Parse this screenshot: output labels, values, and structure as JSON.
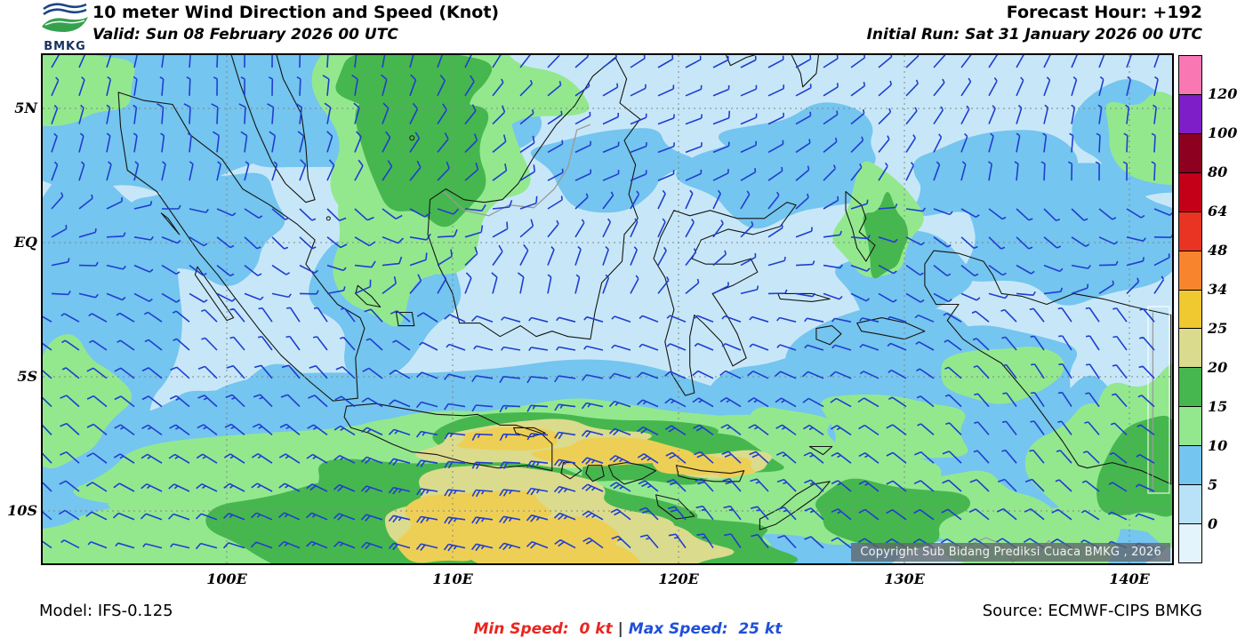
{
  "header": {
    "logo_text": "BMKG",
    "title": "10 meter Wind Direction and Speed (Knot)",
    "valid_label": "Valid: Sun 08 February 2026 00 UTC",
    "forecast_hour_label": "Forecast Hour: +192",
    "initial_run_label": "Initial Run: Sat 31 January 2026 00 UTC"
  },
  "map": {
    "lat_labels": [
      "5N",
      "EQ",
      "5S",
      "10S"
    ],
    "lon_labels": [
      "100E",
      "110E",
      "120E",
      "130E",
      "140E"
    ],
    "copyright": "Copyright Sub Bidang Prediksi Cuaca BMKG , 2026",
    "wind_barb_color": "#1f3ed0",
    "sea_base_color": "#c7e7f8",
    "coastline_color": "#151515",
    "foreign_border_color": "#9a9a9a"
  },
  "legend": {
    "unit": "Knot",
    "labels_top_to_bottom": [
      "120",
      "100",
      "80",
      "64",
      "48",
      "34",
      "25",
      "20",
      "15",
      "10",
      "5",
      "0"
    ],
    "cell_colors_top_to_bottom": [
      "#f978b3",
      "#7d1ec8",
      "#8e0020",
      "#c40019",
      "#ea3423",
      "#f8852e",
      "#f0c930",
      "#dbdb8d",
      "#46b74e",
      "#93e88e",
      "#74c5ef",
      "#b9e2f8",
      "#e4f4fd"
    ]
  },
  "footer": {
    "model_label": "Model: IFS-0.125",
    "min_speed_label": "Min Speed:  0 kt",
    "separator": "|",
    "max_speed_label": "Max Speed:  25 kt",
    "source_label": "Source: ECMWF-CIPS BMKG",
    "min_color": "#e8261f",
    "max_color": "#1f4fd8"
  }
}
